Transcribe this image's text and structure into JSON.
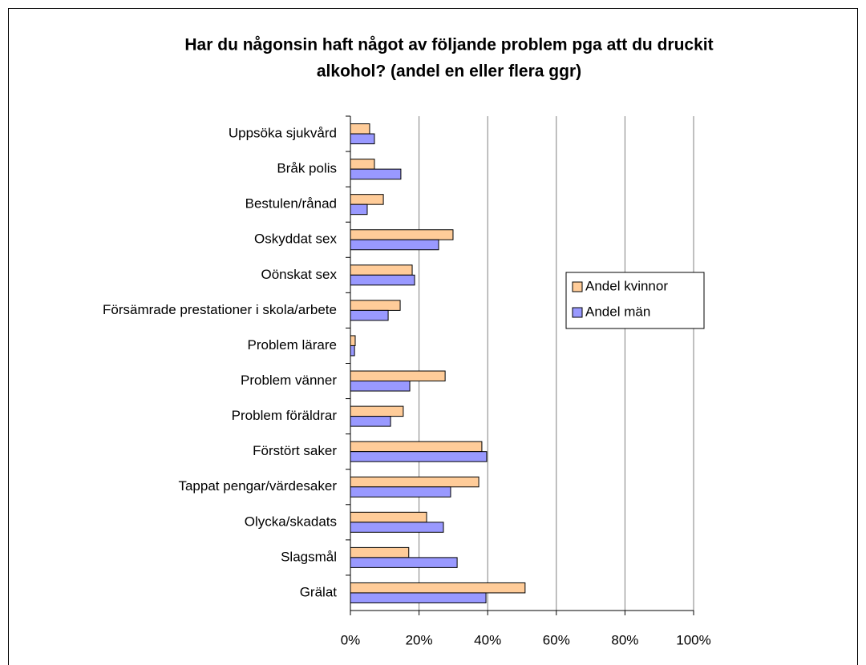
{
  "chart_data": {
    "type": "bar",
    "orientation": "horizontal",
    "title": [
      "Har du någonsin haft något av följande problem pga att du druckit",
      "alkohol? (andel en eller flera ggr)"
    ],
    "categories": [
      "Uppsöka sjukvård",
      "Bråk polis",
      "Bestulen/rånad",
      "Oskyddat sex",
      "Oönskat sex",
      "Försämrade prestationer i skola/arbete",
      "Problem lärare",
      "Problem vänner",
      "Problem föräldrar",
      "Förstört saker",
      "Tappat pengar/värdesaker",
      "Olycka/skadats",
      "Slagsmål",
      "Grälat"
    ],
    "series": [
      {
        "name": "Andel kvinnor",
        "color": "#ffcc99",
        "values": [
          5.6,
          7.0,
          9.6,
          29.9,
          18.0,
          14.5,
          1.4,
          27.6,
          15.4,
          38.3,
          37.4,
          22.2,
          17.0,
          50.9
        ]
      },
      {
        "name": "Andel män",
        "color": "#9999ff",
        "values": [
          7.0,
          14.7,
          4.9,
          25.7,
          18.7,
          11.0,
          1.2,
          17.3,
          11.7,
          39.7,
          29.2,
          27.1,
          31.1,
          39.5
        ]
      }
    ],
    "xlim": [
      0,
      100
    ],
    "xticks": [
      {
        "value": 0,
        "label": "0%"
      },
      {
        "value": 20,
        "label": "20%"
      },
      {
        "value": 40,
        "label": "40%"
      },
      {
        "value": 60,
        "label": "60%"
      },
      {
        "value": 80,
        "label": "80%"
      },
      {
        "value": 100,
        "label": "100%"
      }
    ],
    "grid": true,
    "legend": "right"
  }
}
